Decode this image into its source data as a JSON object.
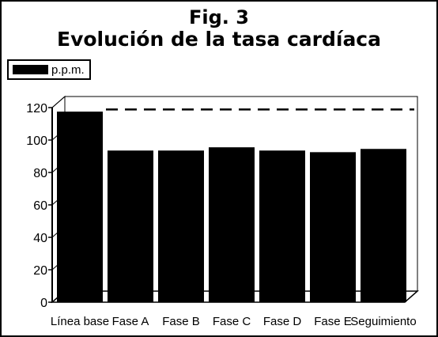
{
  "header": {
    "title_line1": "Fig. 3",
    "title_line2": "Evolución de la tasa cardíaca"
  },
  "legend": {
    "label": "p.p.m."
  },
  "chart_data": {
    "type": "bar",
    "title": "Fig. 3 Evolución de la tasa cardíaca",
    "categories": [
      "Línea base",
      "Fase A",
      "Fase B",
      "Fase C",
      "Fase D",
      "Fase E",
      "Seguimiento"
    ],
    "series": [
      {
        "name": "p.p.m.",
        "values": [
          118,
          94,
          94,
          96,
          94,
          93,
          95
        ]
      }
    ],
    "ylim": [
      0,
      120
    ],
    "yticks": [
      0,
      20,
      40,
      60,
      80,
      100,
      120
    ],
    "reference_line": 112,
    "grid": false,
    "legend_position": "top-left",
    "colors": {
      "bar": "#000000",
      "background": "#ffffff"
    }
  }
}
